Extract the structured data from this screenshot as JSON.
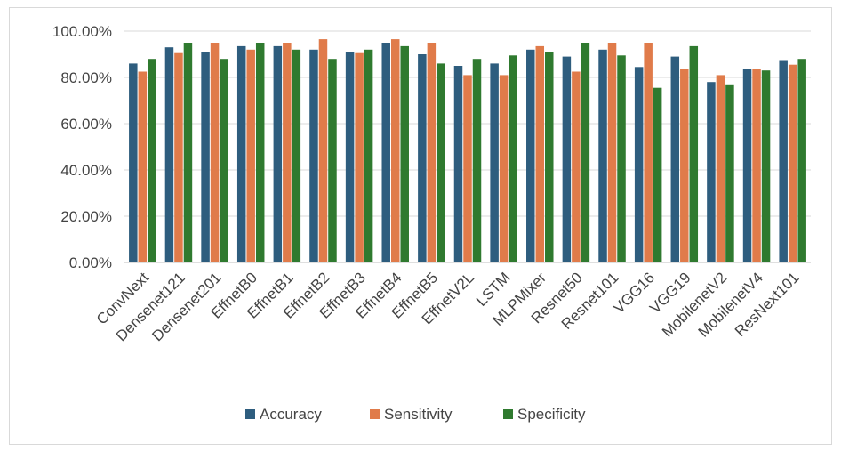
{
  "chart_data": {
    "type": "bar",
    "title": "",
    "xlabel": "",
    "ylabel": "",
    "ylim": [
      0,
      100
    ],
    "y_ticks": [
      "0.00%",
      "20.00%",
      "40.00%",
      "60.00%",
      "80.00%",
      "100.00%"
    ],
    "grid": true,
    "legend_position": "bottom",
    "categories": [
      "ConvNext",
      "Densenet121",
      "Densenet201",
      "EffnetB0",
      "EffnetB1",
      "EffnetB2",
      "EffnetB3",
      "EffnetB4",
      "EffnetB5",
      "EffnetV2L",
      "LSTM",
      "MLPMixer",
      "Resnet50",
      "Resnet101",
      "VGG16",
      "VGG19",
      "MobilenetV2",
      "MobilenetV4",
      "ResNext101"
    ],
    "series": [
      {
        "name": "Accuracy",
        "color": "#2e5d7e",
        "values": [
          86,
          93,
          91,
          93.5,
          93.5,
          92,
          91,
          95,
          90,
          85,
          86,
          92,
          89,
          92,
          84.5,
          89,
          78,
          83.5,
          87.5
        ]
      },
      {
        "name": "Sensitivity",
        "color": "#e07b4a",
        "values": [
          82.5,
          90.5,
          95,
          92,
          95,
          96.5,
          90.5,
          96.5,
          95,
          81,
          81,
          93.5,
          82.5,
          95,
          95,
          83.5,
          81,
          83.5,
          85.5
        ]
      },
      {
        "name": "Specificity",
        "color": "#2f7a2f",
        "values": [
          88,
          95,
          88,
          95,
          92,
          88,
          92,
          93.5,
          86,
          88,
          89.5,
          91,
          95,
          89.5,
          75.5,
          93.5,
          77,
          83,
          88
        ]
      }
    ]
  }
}
